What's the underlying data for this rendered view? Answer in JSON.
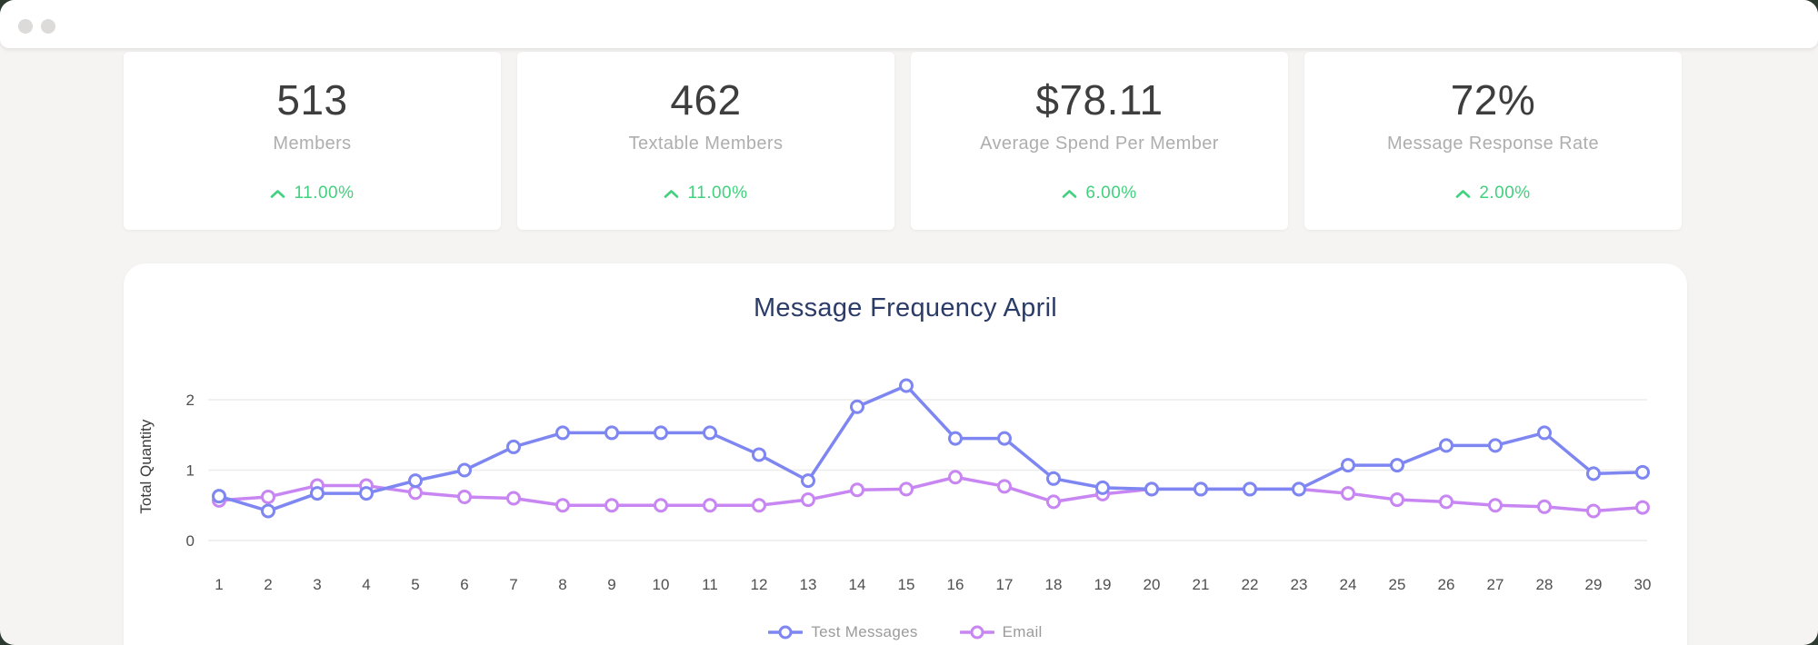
{
  "window": {
    "controls": [
      {
        "label": ""
      },
      {
        "label": ""
      }
    ]
  },
  "colors": {
    "accent_green": "#42d17e",
    "title_navy": "#2b3c68",
    "grid_line": "#ececea",
    "axis_text": "#4f4f4f",
    "legend_text": "#9b9b9b"
  },
  "stats": [
    {
      "value": "513",
      "label": "Members",
      "delta": "11.00%",
      "direction": "up"
    },
    {
      "value": "462",
      "label": "Textable Members",
      "delta": "11.00%",
      "direction": "up"
    },
    {
      "value": "$78.11",
      "label": "Average Spend Per Member",
      "delta": "6.00%",
      "direction": "up"
    },
    {
      "value": "72%",
      "label": "Message Response Rate",
      "delta": "2.00%",
      "direction": "up"
    }
  ],
  "chart_data": {
    "type": "line",
    "title": "Message Frequency April",
    "xlabel": "",
    "ylabel": "Total Quantity",
    "x": [
      1,
      2,
      3,
      4,
      5,
      6,
      7,
      8,
      9,
      10,
      11,
      12,
      13,
      14,
      15,
      16,
      17,
      18,
      19,
      20,
      21,
      22,
      23,
      24,
      25,
      26,
      27,
      28,
      29,
      30
    ],
    "yticks": [
      0,
      1,
      2
    ],
    "ylim": [
      0,
      2.5
    ],
    "grid": "horizontal",
    "legend_position": "bottom",
    "series": [
      {
        "name": "Test Messages",
        "color": "#7e86f2",
        "values": [
          0.63,
          0.42,
          0.67,
          0.67,
          0.85,
          1.0,
          1.33,
          1.53,
          1.53,
          1.53,
          1.53,
          1.22,
          0.85,
          1.9,
          2.2,
          1.45,
          1.45,
          0.88,
          0.75,
          0.73,
          0.73,
          0.73,
          0.73,
          1.07,
          1.07,
          1.35,
          1.35,
          1.53,
          0.95,
          0.97
        ]
      },
      {
        "name": "Email",
        "color": "#c886f2",
        "values": [
          0.57,
          0.62,
          0.78,
          0.78,
          0.68,
          0.62,
          0.6,
          0.5,
          0.5,
          0.5,
          0.5,
          0.5,
          0.58,
          0.72,
          0.73,
          0.9,
          0.77,
          0.55,
          0.66,
          0.73,
          0.73,
          0.73,
          0.73,
          0.67,
          0.58,
          0.55,
          0.5,
          0.48,
          0.42,
          0.47
        ]
      }
    ]
  }
}
